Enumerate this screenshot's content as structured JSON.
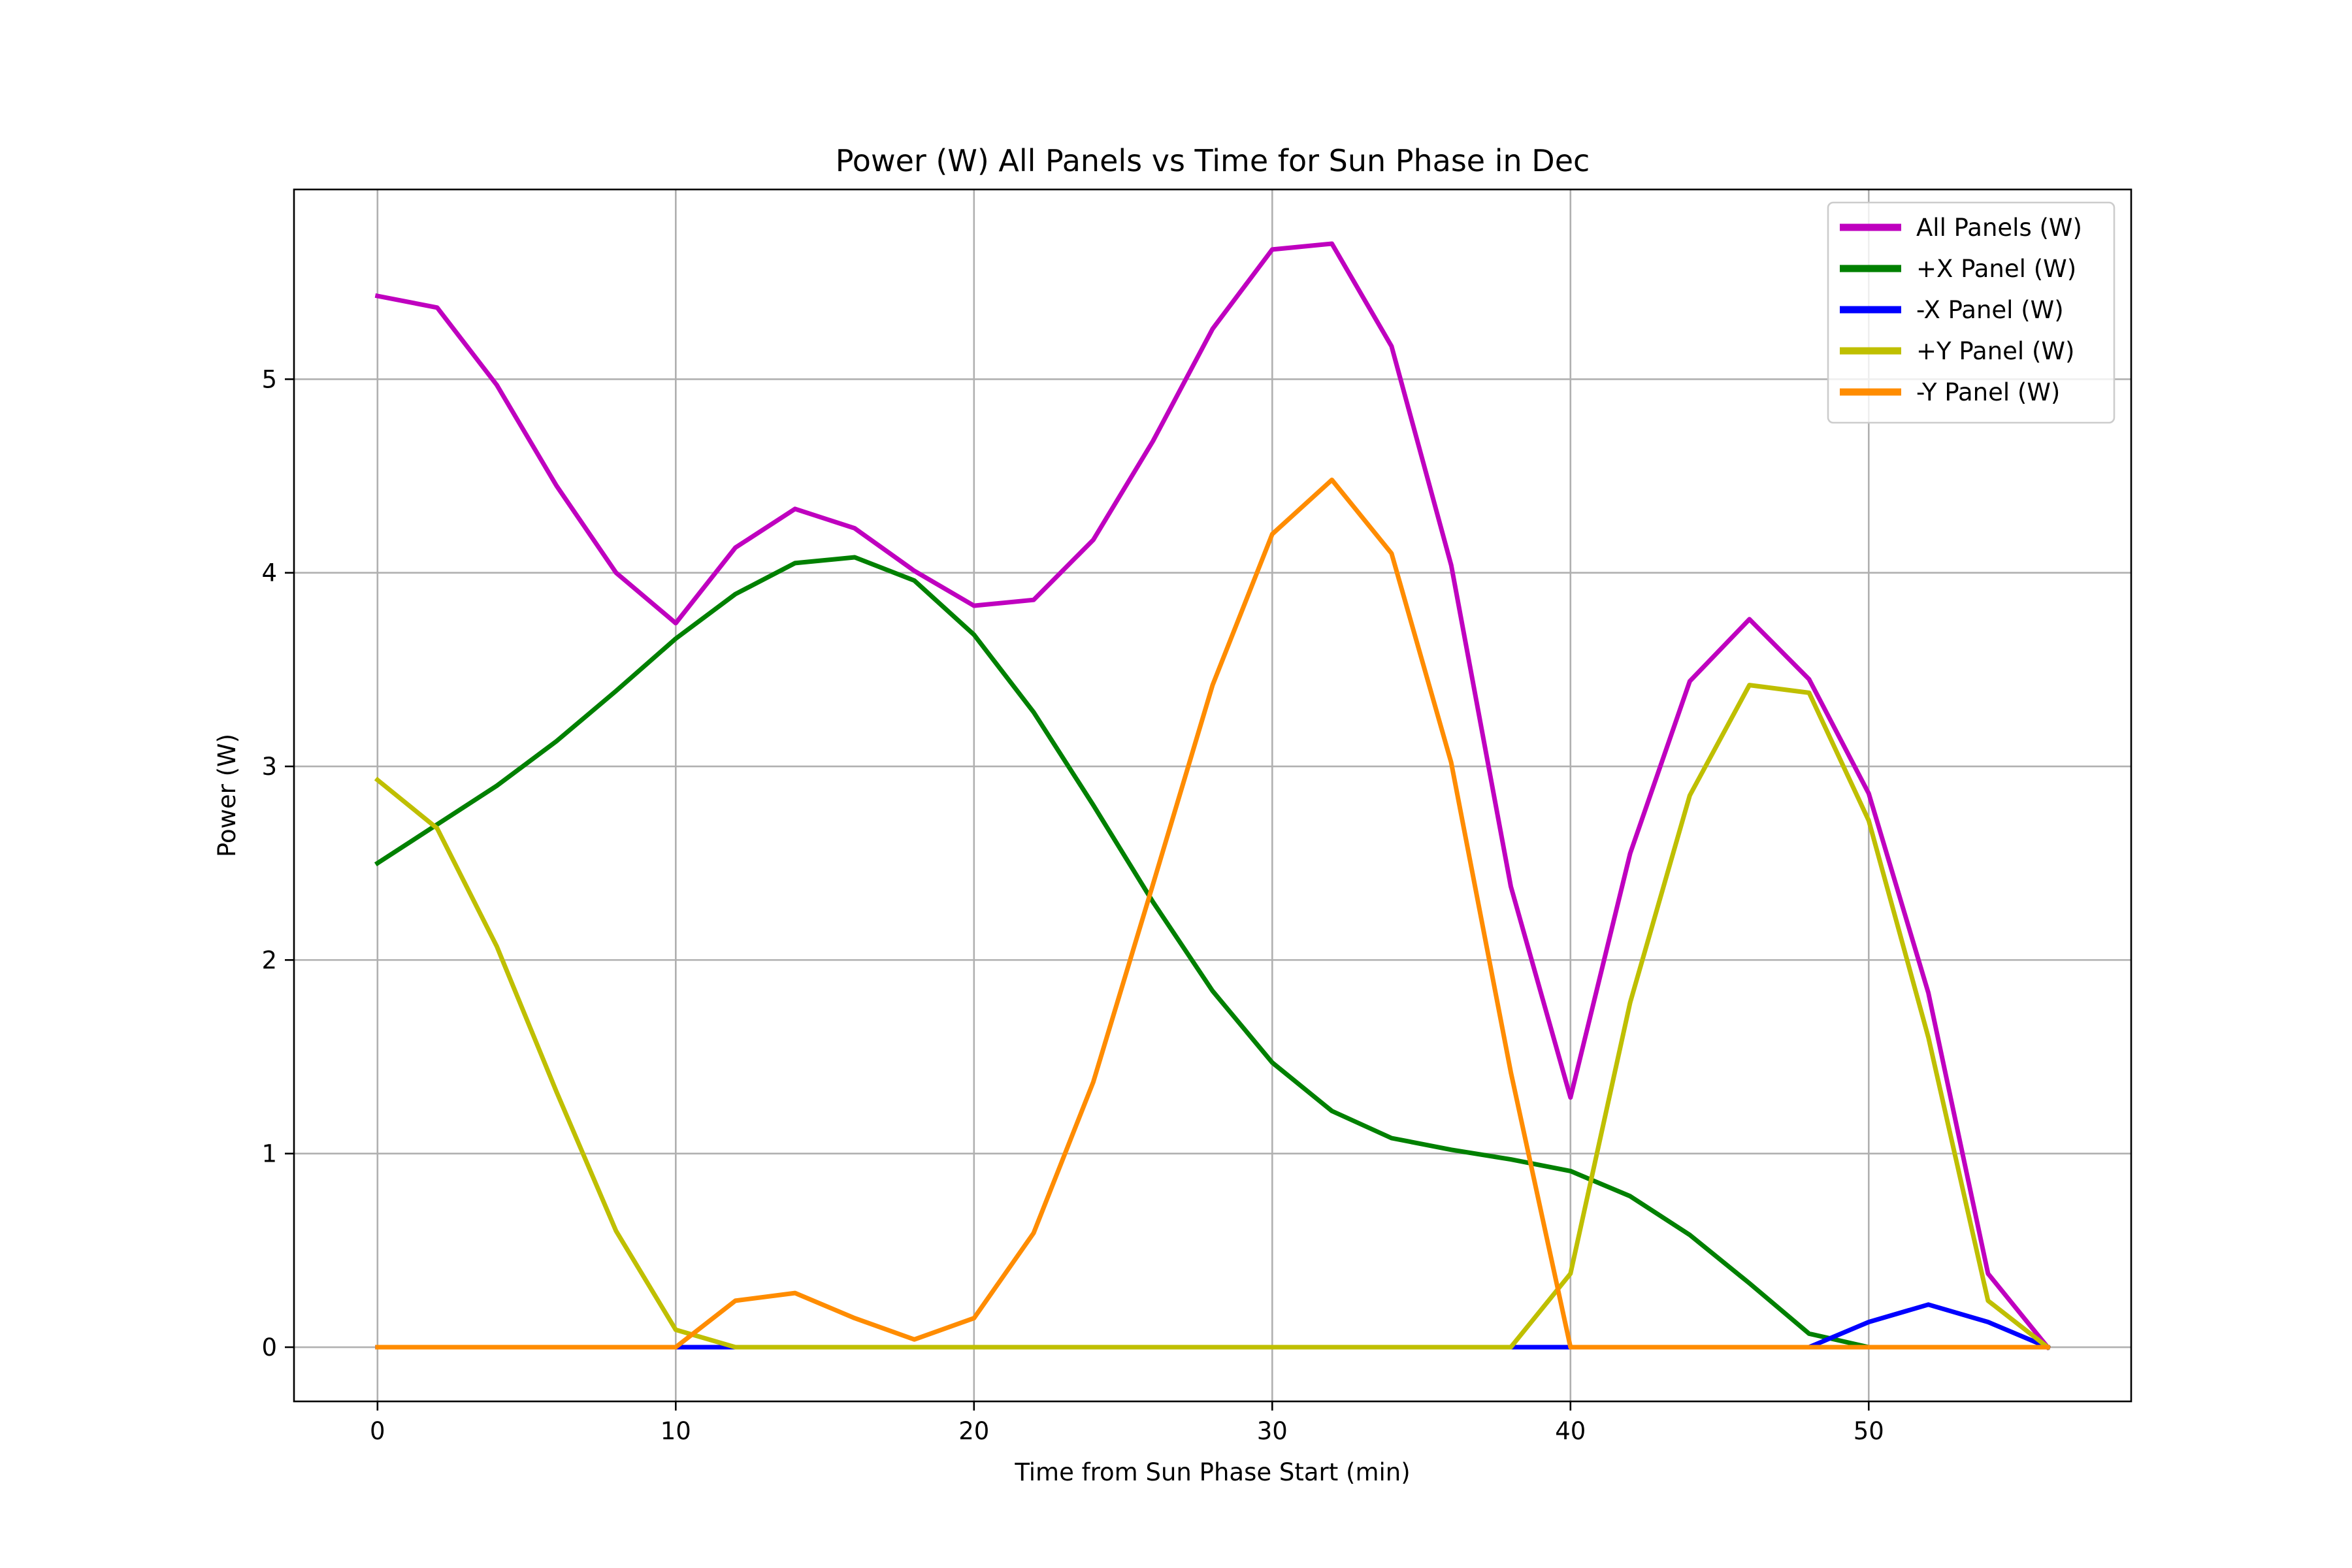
{
  "chart_data": {
    "type": "line",
    "title": "Power (W) All Panels vs Time for Sun Phase in Dec",
    "xlabel": "Time from Sun Phase Start (min)",
    "ylabel": "Power (W)",
    "xlim": [
      -2.8,
      58.8
    ],
    "ylim": [
      -0.28,
      5.98
    ],
    "xticks": [
      0,
      10,
      20,
      30,
      40,
      50
    ],
    "yticks": [
      0,
      1,
      2,
      3,
      4,
      5
    ],
    "grid": true,
    "legend_position": "upper right",
    "x": [
      0,
      2,
      4,
      6,
      8,
      10,
      12,
      14,
      16,
      18,
      20,
      22,
      24,
      26,
      28,
      30,
      32,
      34,
      36,
      38,
      40,
      42,
      44,
      46,
      48,
      50,
      52,
      54,
      56
    ],
    "series": [
      {
        "name": "All Panels (W)",
        "color": "#bf00bf",
        "values": [
          5.43,
          5.37,
          4.97,
          4.45,
          4.0,
          3.74,
          4.13,
          4.33,
          4.23,
          4.01,
          3.83,
          3.86,
          4.17,
          4.68,
          5.26,
          5.67,
          5.7,
          5.17,
          4.04,
          2.38,
          1.29,
          2.55,
          3.44,
          3.76,
          3.45,
          2.86,
          1.83,
          0.38,
          0.0
        ]
      },
      {
        "name": "+X Panel (W)",
        "color": "#008000",
        "values": [
          2.5,
          2.7,
          2.9,
          3.13,
          3.39,
          3.66,
          3.89,
          4.05,
          4.08,
          3.96,
          3.68,
          3.28,
          2.8,
          2.3,
          1.84,
          1.47,
          1.22,
          1.08,
          1.02,
          0.97,
          0.91,
          0.78,
          0.58,
          0.33,
          0.07,
          0.0,
          0.0,
          0.0,
          0.0
        ]
      },
      {
        "name": "-X Panel (W)",
        "color": "#0000ff",
        "values": [
          0,
          0,
          0,
          0,
          0,
          0,
          0,
          0,
          0,
          0,
          0,
          0,
          0,
          0,
          0,
          0,
          0,
          0,
          0,
          0,
          0,
          0,
          0,
          0,
          0,
          0.13,
          0.22,
          0.13,
          0.0
        ]
      },
      {
        "name": "+Y Panel (W)",
        "color": "#bfbf00",
        "values": [
          2.93,
          2.68,
          2.07,
          1.32,
          0.6,
          0.09,
          0.0,
          0.0,
          0.0,
          0.0,
          0.0,
          0.0,
          0.0,
          0.0,
          0.0,
          0.0,
          0.0,
          0.0,
          0.0,
          0.0,
          0.38,
          1.78,
          2.85,
          3.42,
          3.38,
          2.72,
          1.6,
          0.24,
          0.0
        ]
      },
      {
        "name": "-Y Panel (W)",
        "color": "#ff8c00",
        "values": [
          0,
          0,
          0,
          0,
          0,
          0.0,
          0.24,
          0.28,
          0.15,
          0.04,
          0.15,
          0.59,
          1.37,
          2.39,
          3.42,
          4.2,
          4.48,
          4.1,
          3.02,
          1.42,
          0.0,
          0.0,
          0.0,
          0.0,
          0.0,
          0.0,
          0.0,
          0.0,
          0.0
        ]
      }
    ]
  }
}
